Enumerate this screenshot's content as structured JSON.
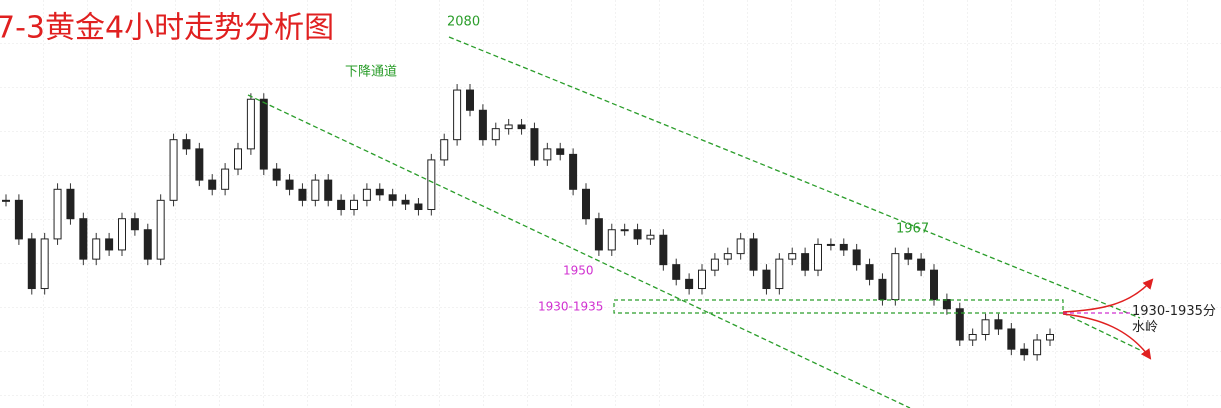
{
  "chart_data": {
    "type": "candlestick",
    "title": "7-3黄金4小时走势分析图",
    "channel_label": "下降通道",
    "annotations": {
      "high": "2080",
      "upper_touch": "1967",
      "lower_touch": "1950",
      "zone": "1930-1935",
      "pivot": "1930-1935分水岭"
    },
    "ylim": [
      1878,
      2100
    ],
    "values": [
      1991,
      1970,
      1943,
      1970,
      1997,
      1981,
      1959,
      1970,
      1964,
      1981,
      1975,
      1959,
      1991,
      2024,
      2019,
      2002,
      1997,
      2008,
      2019,
      2046,
      2008,
      2002,
      1997,
      1991,
      2002,
      1991,
      1986,
      1991,
      1997,
      1994,
      1991,
      1989,
      1986,
      2013,
      2024,
      2051,
      2040,
      2024,
      2030,
      2032,
      2030,
      2013,
      2019,
      2016,
      1997,
      1981,
      1964,
      1975,
      1975,
      1970,
      1972,
      1956,
      1948,
      1943,
      1953,
      1959,
      1962,
      1970,
      1953,
      1943,
      1959,
      1962,
      1953,
      1967,
      1967,
      1964,
      1956,
      1948,
      1937,
      1962,
      1959,
      1953,
      1937,
      1932,
      1915,
      1918,
      1926,
      1921,
      1910,
      1907,
      1915,
      1918
    ],
    "up_color": "#ffffff",
    "down_color": "#222222",
    "grid": true
  }
}
